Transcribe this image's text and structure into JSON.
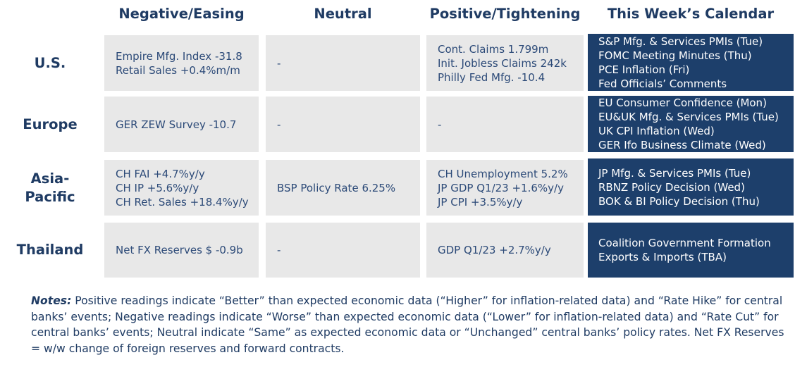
{
  "headers": {
    "negative": "Negative/Easing",
    "neutral": "Neutral",
    "positive": "Positive/Tightening",
    "calendar": "This Week’s Calendar"
  },
  "rows": [
    {
      "label": [
        "U.S."
      ],
      "negative": [
        "Empire Mfg. Index -31.8",
        "Retail Sales +0.4%m/m"
      ],
      "neutral": [
        "-"
      ],
      "positive": [
        "Cont. Claims 1.799m",
        "Init. Jobless Claims 242k",
        "Philly Fed Mfg. -10.4"
      ],
      "calendar": [
        "S&P Mfg. & Services PMIs (Tue)",
        "FOMC Meeting Minutes (Thu)",
        "PCE Inflation (Fri)",
        "Fed Officials’ Comments"
      ]
    },
    {
      "label": [
        "Europe"
      ],
      "negative": [
        "GER ZEW Survey -10.7"
      ],
      "neutral": [
        "-"
      ],
      "positive": [
        "-"
      ],
      "calendar": [
        "EU Consumer Confidence (Mon)",
        "EU&UK Mfg. & Services PMIs (Tue)",
        "UK CPI Inflation (Wed)",
        "GER Ifo Business Climate (Wed)"
      ]
    },
    {
      "label": [
        "Asia-",
        "Pacific"
      ],
      "negative": [
        "CH FAI +4.7%y/y",
        "CH IP +5.6%y/y",
        "CH Ret. Sales +18.4%y/y"
      ],
      "neutral": [
        "BSP Policy Rate 6.25%"
      ],
      "positive": [
        "CH Unemployment 5.2%",
        "JP GDP Q1/23 +1.6%y/y",
        "JP CPI +3.5%y/y"
      ],
      "calendar": [
        "JP Mfg. & Services PMIs (Tue)",
        "RBNZ Policy Decision (Wed)",
        "BOK & BI Policy Decision (Thu)"
      ]
    },
    {
      "label": [
        "Thailand"
      ],
      "negative": [
        "Net FX Reserves $ -0.9b"
      ],
      "neutral": [
        "-"
      ],
      "positive": [
        "GDP Q1/23 +2.7%y/y"
      ],
      "calendar": [
        "Coalition Government Formation",
        "Exports & Imports (TBA)"
      ]
    }
  ],
  "notes": {
    "label": "Notes:",
    "text": " Positive readings indicate “Better” than expected economic data (“Higher” for inflation-related data) and “Rate Hike” for central banks’ events; Negative readings indicate “Worse” than expected economic data (“Lower” for inflation-related data) and “Rate Cut” for central banks’ events; Neutral indicate “Same” as expected economic data or “Unchanged” central banks’ policy rates. Net FX Reserves = w/w change of foreign reserves and forward contracts."
  }
}
